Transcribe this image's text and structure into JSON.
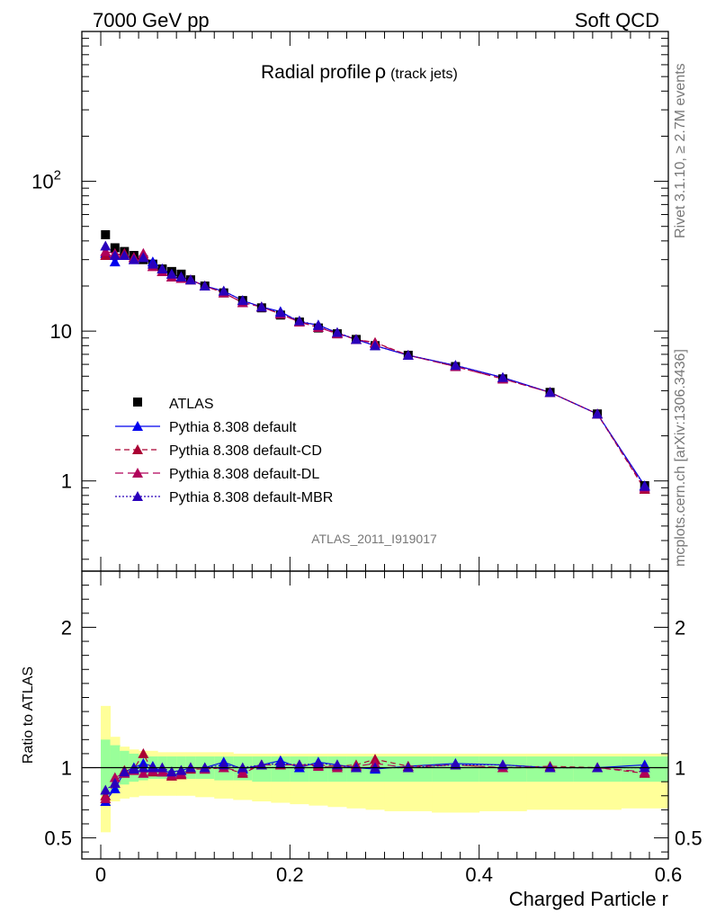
{
  "header": {
    "left": "7000 GeV pp",
    "right": "Soft QCD"
  },
  "side_text": {
    "upper": "Rivet 3.1.10, ≥ 2.7M events",
    "lower": "mcplots.cern.ch [arXiv:1306.3436]"
  },
  "main_title": {
    "main": "Radial profile",
    "symbol": "ρ",
    "sub": "(track jets)"
  },
  "analysis_label": "ATLAS_2011_I919017",
  "colors": {
    "data": "#000000",
    "default": "#0000ee",
    "cd": "#aa0033",
    "dl": "#b0005a",
    "mbr": "#2a00bb",
    "band_inner": "#99ff99",
    "band_outer": "#ffff99"
  },
  "chart_data": [
    {
      "type": "scatter",
      "yscale": "log",
      "ylim": [
        0.25,
        1000
      ],
      "xlim": [
        -0.02,
        0.6
      ],
      "yticks": [
        {
          "v": 1,
          "label": "1"
        },
        {
          "v": 10,
          "label": "10"
        },
        {
          "v": 100,
          "label": "10",
          "sup": "2"
        }
      ],
      "legend": {
        "placement": "lower-left"
      },
      "x": [
        0.005,
        0.015,
        0.025,
        0.035,
        0.045,
        0.055,
        0.065,
        0.075,
        0.085,
        0.095,
        0.11,
        0.13,
        0.15,
        0.17,
        0.19,
        0.21,
        0.23,
        0.25,
        0.27,
        0.29,
        0.325,
        0.375,
        0.425,
        0.475,
        0.525,
        0.575
      ],
      "series": [
        {
          "name": "ATLAS",
          "style": "data",
          "values": [
            44,
            36,
            34,
            32,
            30,
            28,
            26,
            25,
            24,
            22,
            20,
            18,
            16,
            14.3,
            12.8,
            11.5,
            10.5,
            9.6,
            8.8,
            8.0,
            6.9,
            5.8,
            4.8,
            3.9,
            2.8,
            0.93
          ]
        },
        {
          "name": "Pythia 8.308 default",
          "style": "default",
          "values": [
            33,
            29,
            33,
            30,
            31,
            29,
            26,
            24,
            23,
            22,
            20,
            18.5,
            16,
            14.5,
            13.5,
            11.5,
            11,
            9.7,
            8.8,
            8.0,
            6.9,
            5.9,
            4.9,
            3.9,
            2.8,
            0.93
          ]
        },
        {
          "name": "Pythia 8.308 default-CD",
          "style": "cd",
          "values": [
            32,
            32,
            33,
            31,
            32,
            27,
            25,
            23,
            22.5,
            22,
            20,
            18,
            15.5,
            14.5,
            13,
            11.5,
            10.6,
            9.7,
            8.8,
            8.4,
            6.9,
            5.8,
            4.8,
            3.9,
            2.8,
            0.88
          ]
        },
        {
          "name": "Pythia 8.308 default-DL",
          "style": "dl",
          "values": [
            34,
            33,
            32,
            31,
            33,
            27,
            25,
            23,
            22.5,
            22,
            20,
            18,
            15.5,
            14.5,
            13,
            11.5,
            10.6,
            9.6,
            8.8,
            8.3,
            6.9,
            5.8,
            4.8,
            3.9,
            2.8,
            0.9
          ]
        },
        {
          "name": "Pythia 8.308 default-MBR",
          "style": "mbr",
          "values": [
            37,
            32,
            32,
            30,
            31,
            28,
            26,
            24,
            23,
            22,
            20,
            18.5,
            16,
            14.5,
            13.3,
            11.7,
            10.9,
            9.8,
            8.8,
            8.0,
            6.9,
            5.9,
            4.9,
            3.9,
            2.8,
            0.92
          ]
        }
      ]
    },
    {
      "type": "scatter",
      "ylabel": "Ratio to ATLAS",
      "xlabel": "Charged Particle r",
      "ylim": [
        0.35,
        2.4
      ],
      "xlim": [
        -0.02,
        0.6
      ],
      "xticks": [
        {
          "v": 0,
          "label": "0"
        },
        {
          "v": 0.2,
          "label": "0.2"
        },
        {
          "v": 0.4,
          "label": "0.4"
        },
        {
          "v": 0.6,
          "label": "0.6"
        }
      ],
      "yticks": [
        {
          "v": 0.5,
          "label": "0.5"
        },
        {
          "v": 1,
          "label": "1"
        },
        {
          "v": 2,
          "label": "2"
        }
      ],
      "bands": {
        "edges": [
          0,
          0.01,
          0.02,
          0.03,
          0.04,
          0.05,
          0.06,
          0.07,
          0.08,
          0.09,
          0.1,
          0.12,
          0.14,
          0.16,
          0.18,
          0.2,
          0.22,
          0.24,
          0.26,
          0.28,
          0.3,
          0.35,
          0.4,
          0.45,
          0.5,
          0.55,
          0.6
        ],
        "inner_lo": [
          0.8,
          0.84,
          0.88,
          0.9,
          0.91,
          0.92,
          0.92,
          0.92,
          0.92,
          0.92,
          0.92,
          0.91,
          0.91,
          0.9,
          0.9,
          0.9,
          0.9,
          0.9,
          0.9,
          0.9,
          0.9,
          0.9,
          0.9,
          0.9,
          0.9,
          0.9
        ],
        "inner_hi": [
          1.2,
          1.16,
          1.12,
          1.1,
          1.09,
          1.08,
          1.08,
          1.08,
          1.08,
          1.08,
          1.08,
          1.08,
          1.08,
          1.08,
          1.08,
          1.08,
          1.08,
          1.08,
          1.08,
          1.08,
          1.08,
          1.08,
          1.08,
          1.08,
          1.08,
          1.08
        ],
        "outer_lo": [
          0.54,
          0.76,
          0.78,
          0.79,
          0.8,
          0.8,
          0.8,
          0.8,
          0.8,
          0.8,
          0.79,
          0.78,
          0.77,
          0.76,
          0.75,
          0.74,
          0.73,
          0.72,
          0.71,
          0.7,
          0.69,
          0.68,
          0.69,
          0.7,
          0.7,
          0.71
        ],
        "outer_hi": [
          1.44,
          1.22,
          1.15,
          1.13,
          1.12,
          1.12,
          1.11,
          1.11,
          1.11,
          1.11,
          1.11,
          1.11,
          1.1,
          1.1,
          1.1,
          1.1,
          1.1,
          1.1,
          1.1,
          1.1,
          1.1,
          1.1,
          1.1,
          1.1,
          1.1,
          1.1
        ]
      },
      "x": [
        0.005,
        0.015,
        0.025,
        0.035,
        0.045,
        0.055,
        0.065,
        0.075,
        0.085,
        0.095,
        0.11,
        0.13,
        0.15,
        0.17,
        0.19,
        0.21,
        0.23,
        0.25,
        0.27,
        0.29,
        0.325,
        0.375,
        0.425,
        0.475,
        0.525,
        0.575
      ],
      "series": [
        {
          "name": "Pythia 8.308 default",
          "style": "default",
          "values": [
            0.76,
            0.85,
            0.97,
            1.0,
            1.03,
            1.01,
            0.97,
            0.97,
            0.98,
            1.0,
            1.0,
            1.04,
            0.99,
            1.02,
            1.05,
            1.0,
            1.04,
            1.02,
            1.0,
            0.99,
            1.01,
            1.03,
            1.02,
            1.0,
            1.0,
            1.02
          ]
        },
        {
          "name": "Pythia 8.308 default-CD",
          "style": "cd",
          "values": [
            0.8,
            0.89,
            0.98,
            0.99,
            1.1,
            0.97,
            0.97,
            0.94,
            0.95,
            0.99,
            0.99,
            1.0,
            0.96,
            1.02,
            1.02,
            1.02,
            1.02,
            1.01,
            1.02,
            1.06,
            1.01,
            1.02,
            1.0,
            1.01,
            1.0,
            0.96
          ]
        },
        {
          "name": "Pythia 8.308 default-DL",
          "style": "dl",
          "values": [
            0.78,
            0.93,
            0.96,
            0.98,
            0.96,
            0.98,
            0.97,
            0.95,
            0.96,
            1.0,
            0.99,
            1.0,
            0.97,
            1.02,
            1.02,
            1.02,
            1.01,
            1.0,
            1.01,
            1.03,
            1.0,
            1.02,
            1.0,
            1.0,
            1.0,
            0.97
          ]
        },
        {
          "name": "Pythia 8.308 default-MBR",
          "style": "mbr",
          "values": [
            0.84,
            0.89,
            0.97,
            0.99,
            1.0,
            1.0,
            1.0,
            0.97,
            0.98,
            1.0,
            1.0,
            1.02,
            1.0,
            1.02,
            1.03,
            1.02,
            1.03,
            1.02,
            1.0,
            1.0,
            1.0,
            1.02,
            1.02,
            1.0,
            1.0,
            1.0
          ]
        }
      ]
    }
  ]
}
